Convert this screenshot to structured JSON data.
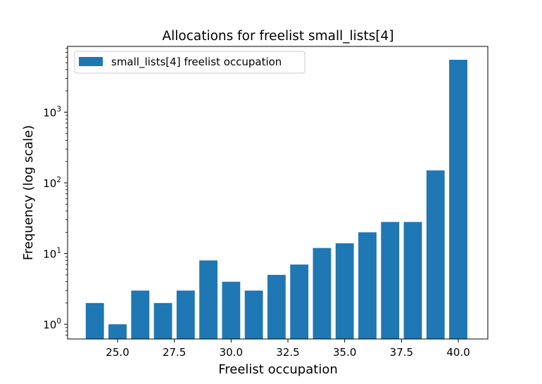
{
  "chart_data": {
    "type": "bar",
    "title": "Allocations for freelist small_lists[4]",
    "xlabel": "Freelist occupation",
    "ylabel": "Frequency (log scale)",
    "yscale": "log",
    "x": [
      24,
      25,
      26,
      27,
      28,
      29,
      30,
      31,
      32,
      33,
      34,
      35,
      36,
      37,
      38,
      39,
      40
    ],
    "values": [
      2,
      1,
      3,
      2,
      3,
      8,
      4,
      3,
      5,
      7,
      12,
      14,
      20,
      28,
      28,
      150,
      5500
    ],
    "bar_width": 0.8,
    "xlim": [
      22.8,
      41.3
    ],
    "ylim": [
      0.62,
      8500
    ],
    "xticks": [
      25.0,
      27.5,
      30.0,
      32.5,
      35.0,
      37.5,
      40.0
    ],
    "xtick_labels": [
      "25.0",
      "27.5",
      "30.0",
      "32.5",
      "35.0",
      "37.5",
      "40.0"
    ],
    "yticks": [
      1,
      10,
      100,
      1000
    ],
    "ytick_labels": [
      {
        "base": "10",
        "exp": "0"
      },
      {
        "base": "10",
        "exp": "1"
      },
      {
        "base": "10",
        "exp": "2"
      },
      {
        "base": "10",
        "exp": "3"
      }
    ],
    "legend": {
      "entries": [
        "small_lists[4] freelist occupation"
      ],
      "position": "upper-left"
    },
    "colors": {
      "bar": "#1f77b4",
      "axis": "#000000",
      "legend_border": "#cccccc",
      "background": "#ffffff"
    },
    "grid": false
  }
}
